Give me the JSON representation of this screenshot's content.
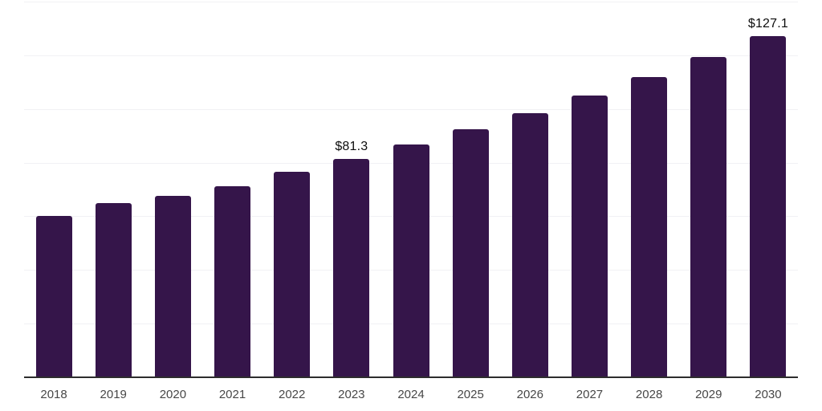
{
  "chart_data": {
    "type": "bar",
    "x": [
      "2018",
      "2019",
      "2020",
      "2021",
      "2022",
      "2023",
      "2024",
      "2025",
      "2026",
      "2027",
      "2028",
      "2029",
      "2030"
    ],
    "values": [
      60.0,
      65.0,
      67.5,
      71.1,
      76.7,
      81.3,
      86.7,
      92.4,
      98.5,
      105.1,
      111.9,
      119.4,
      127.1
    ],
    "data_labels": {
      "2023": "$81.3",
      "2030": "$127.1"
    },
    "title": "",
    "xlabel": "",
    "ylabel": "",
    "ylim": [
      0,
      140
    ],
    "gridline_values": [
      20,
      40,
      60,
      80,
      100,
      120,
      140
    ],
    "grid": "horizontal-only",
    "legend_position": "none",
    "colors": {
      "bar": "#35154a",
      "gridline": "#f1f1f4",
      "axis_line": "#2d2d2d",
      "tick_label": "#474747",
      "data_label": "#0d0d0d",
      "background": "#ffffff"
    }
  }
}
